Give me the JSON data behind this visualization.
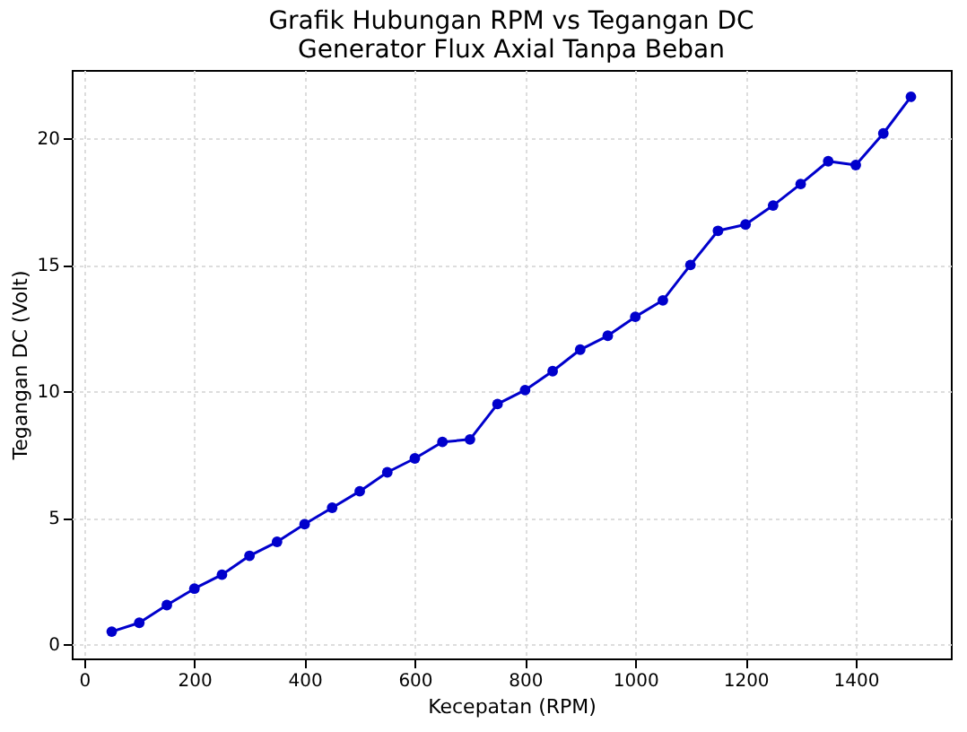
{
  "chart_data": {
    "type": "line",
    "title": "Grafik Hubungan RPM vs Tegangan DC\nGenerator Flux Axial Tanpa Beban",
    "xlabel": "Kecepatan (RPM)",
    "ylabel": "Tegangan DC (Volt)",
    "x": [
      50,
      100,
      150,
      200,
      250,
      300,
      350,
      400,
      450,
      500,
      550,
      600,
      650,
      700,
      750,
      800,
      850,
      900,
      950,
      1000,
      1050,
      1100,
      1150,
      1200,
      1250,
      1300,
      1350,
      1400,
      1450,
      1500
    ],
    "series": [
      {
        "color": "#0000cc",
        "values": [
          0.5,
          0.85,
          1.55,
          2.2,
          2.75,
          3.5,
          4.05,
          4.75,
          5.4,
          6.05,
          6.8,
          7.35,
          8.0,
          8.1,
          9.5,
          10.05,
          10.8,
          11.65,
          12.2,
          12.95,
          13.6,
          15.0,
          16.35,
          16.6,
          17.35,
          18.2,
          19.1,
          18.95,
          20.2,
          21.65
        ]
      }
    ],
    "xlim": [
      -22.5,
      1572.5
    ],
    "xticks": [
      0,
      200,
      400,
      600,
      800,
      1000,
      1200,
      1400
    ],
    "ylim": [
      -0.56,
      22.71
    ],
    "yticks": [
      0,
      5,
      10,
      15,
      20
    ],
    "grid": true,
    "marker": "circle",
    "line_style": "solid"
  }
}
